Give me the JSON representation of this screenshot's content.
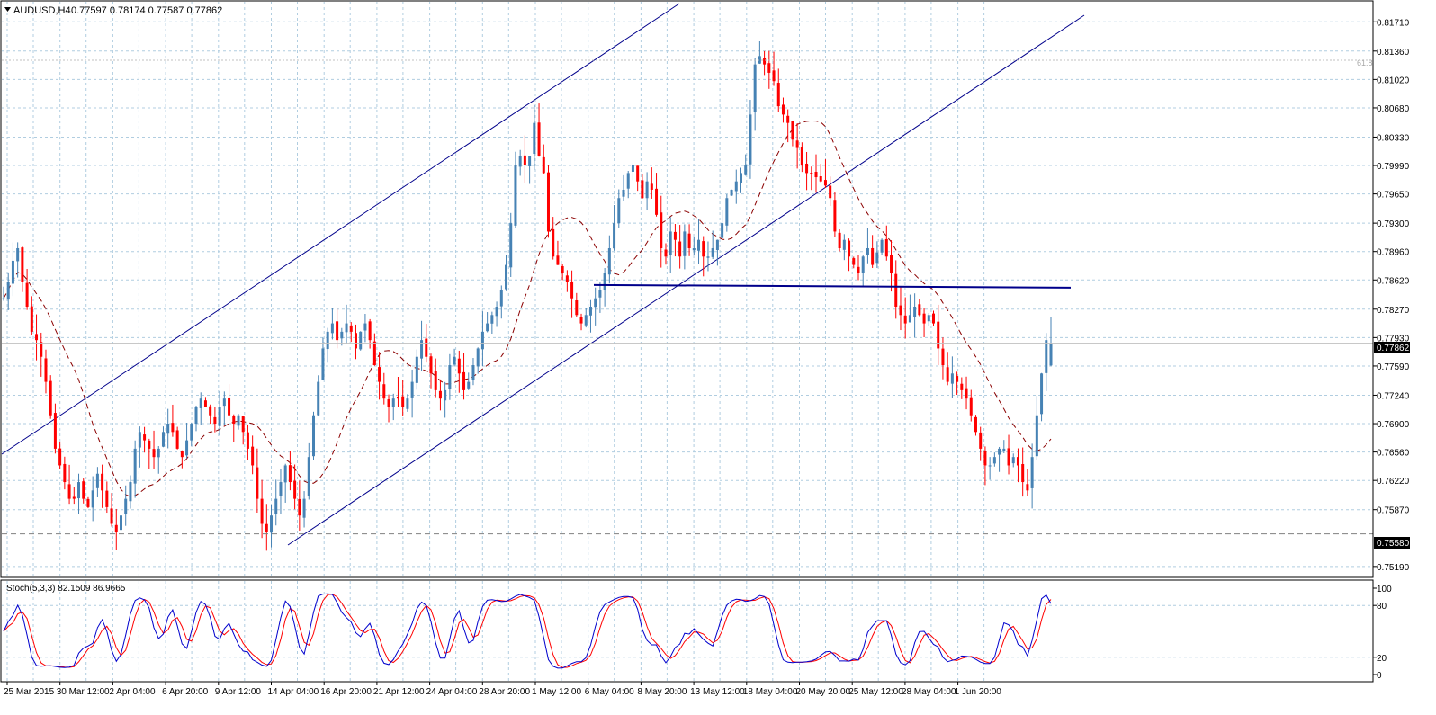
{
  "main_header": {
    "symbol": "AUDUSD,H4",
    "values": "0.77597 0.78174 0.77587 0.77862"
  },
  "indicator_header": {
    "label": "Stoch(5,3,3) 82.1509 86.9665"
  },
  "fib_label": "61.8",
  "current_price_label": "0.77862",
  "support_price_label": "0.75580",
  "colors": {
    "bull_candle": "#4682b4",
    "bear_candle": "#ff0000",
    "ma_line": "#8b0000",
    "trendline": "#00008b",
    "grid": "#b0cde0",
    "stoch_main": "#0000cd",
    "stoch_signal": "#ff0000"
  },
  "chart_data": [
    {
      "type": "candlestick",
      "symbol": "AUDUSD",
      "timeframe": "H4",
      "x_tick_labels": [
        "25 Mar 2015",
        "30 Mar 12:00",
        "2 Apr 04:00",
        "6 Apr 20:00",
        "9 Apr 12:00",
        "14 Apr 04:00",
        "16 Apr 20:00",
        "21 Apr 12:00",
        "24 Apr 04:00",
        "28 Apr 20:00",
        "1 May 12:00",
        "6 May 04:00",
        "8 May 20:00",
        "13 May 12:00",
        "18 May 04:00",
        "20 May 20:00",
        "25 May 12:00",
        "28 May 04:00",
        "1 Jun 20:00"
      ],
      "y_tick_labels": [
        "0.81710",
        "0.81360",
        "0.81020",
        "0.80680",
        "0.80330",
        "0.79990",
        "0.79650",
        "0.79300",
        "0.78960",
        "0.78620",
        "0.78270",
        "0.77930",
        "0.77590",
        "0.77240",
        "0.76900",
        "0.76560",
        "0.76220",
        "0.75870",
        "0.75190"
      ],
      "ylim": [
        0.7507,
        0.8195
      ],
      "last_ohlc": {
        "open": 0.77597,
        "high": 0.78174,
        "low": 0.77587,
        "close": 0.77862
      },
      "price_path": [
        [
          0.784,
          0.786,
          0.7885,
          0.79,
          0.786,
          0.783,
          0.78,
          0.779,
          0.777,
          0.774,
          0.77,
          0.766,
          0.764,
          0.762,
          0.76,
          0.76,
          0.762,
          0.76,
          0.759,
          0.761,
          0.763,
          0.761,
          0.759,
          0.757,
          0.756,
          0.758,
          0.76,
          0.762,
          0.766,
          0.768,
          0.767,
          0.766,
          0.765,
          0.766,
          0.768,
          0.769,
          0.768,
          0.766,
          0.765,
          0.767,
          0.769,
          0.771,
          0.772,
          0.771,
          0.77,
          0.769,
          0.771,
          0.772,
          0.77,
          0.769,
          0.77,
          0.768,
          0.766,
          0.764,
          0.76,
          0.757,
          0.756,
          0.758,
          0.76,
          0.762,
          0.764,
          0.762,
          0.76,
          0.758,
          0.76,
          0.765,
          0.77,
          0.774,
          0.778,
          0.78,
          0.781,
          0.779,
          0.78,
          0.781,
          0.78,
          0.778,
          0.78,
          0.781,
          0.779,
          0.776,
          0.774,
          0.772,
          0.771,
          0.772,
          0.772,
          0.771,
          0.772,
          0.774,
          0.777,
          0.779,
          0.777,
          0.775,
          0.773,
          0.772,
          0.773,
          0.776,
          0.777,
          0.775,
          0.773,
          0.774,
          0.776,
          0.778,
          0.78,
          0.781,
          0.782,
          0.783,
          0.785,
          0.788,
          0.793,
          0.8,
          0.801,
          0.8,
          0.801,
          0.805,
          0.801,
          0.799,
          0.792,
          0.789,
          0.788,
          0.787,
          0.786,
          0.784,
          0.782,
          0.781,
          0.782,
          0.783,
          0.784,
          0.785,
          0.787,
          0.79,
          0.793,
          0.796,
          0.797,
          0.799,
          0.8,
          0.798,
          0.796,
          0.798,
          0.797,
          0.794,
          0.79,
          0.789,
          0.792,
          0.791,
          0.789,
          0.792,
          0.79,
          0.79,
          0.791,
          0.789,
          0.789,
          0.79,
          0.791,
          0.793,
          0.796,
          0.797,
          0.798,
          0.799,
          0.8,
          0.806,
          0.812,
          0.813,
          0.812,
          0.811,
          0.81,
          0.807,
          0.806,
          0.805,
          0.803,
          0.802,
          0.8,
          0.799,
          0.799,
          0.7985,
          0.798,
          0.7975,
          0.796,
          0.792,
          0.79,
          0.791,
          0.789,
          0.788,
          0.787,
          0.789,
          0.79,
          0.788,
          0.7895,
          0.791,
          0.789,
          0.787,
          0.783,
          0.782,
          0.781,
          0.782,
          0.783,
          0.782,
          0.781,
          0.782,
          0.781,
          0.778,
          0.776,
          0.774,
          0.775,
          0.774,
          0.773,
          0.772,
          0.77,
          0.768,
          0.766,
          0.764,
          0.764,
          0.765,
          0.766,
          0.766,
          0.764,
          0.765,
          0.764,
          0.762,
          0.761,
          0.765,
          0.77,
          0.775,
          0.779,
          0.7786
        ]
      ]
    },
    {
      "type": "line",
      "indicator": "Stoch(5,3,3)",
      "main_value": 82.1509,
      "signal_value": 86.9665,
      "ylim": [
        0,
        100
      ],
      "y_tick_labels": [
        "100",
        "80",
        "20",
        "0"
      ],
      "levels": [
        80,
        20
      ]
    }
  ]
}
